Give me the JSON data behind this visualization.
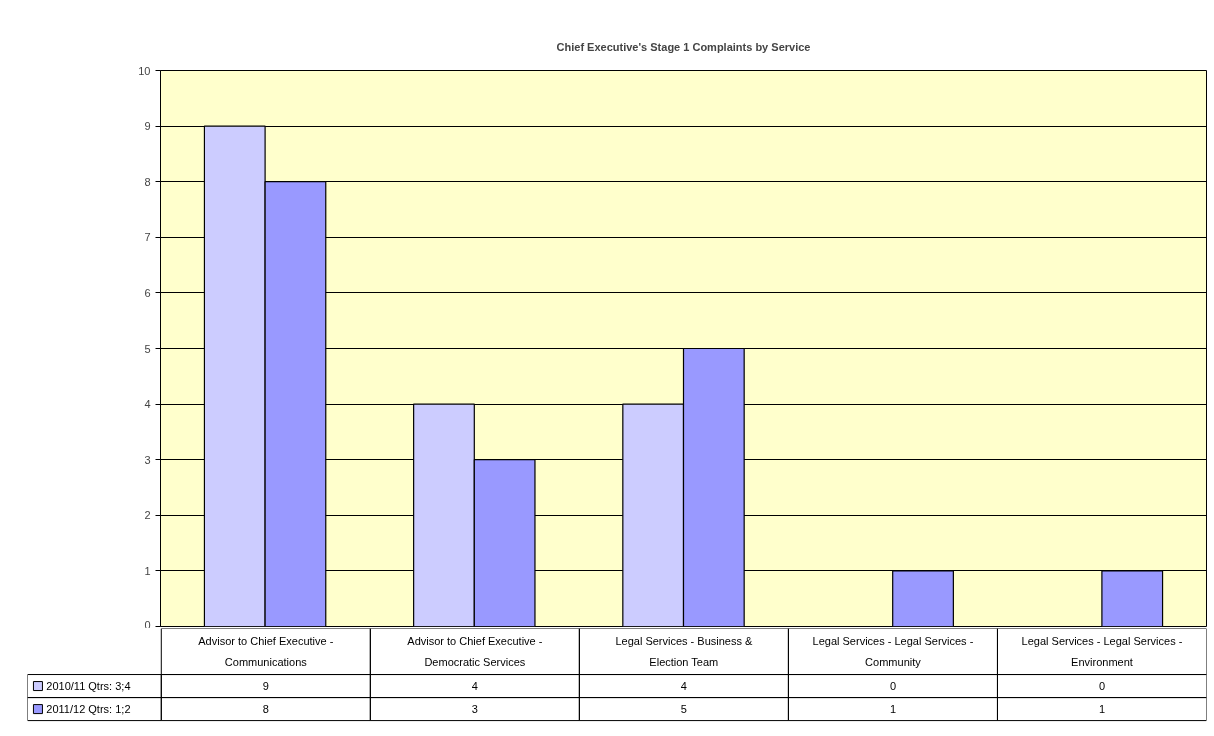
{
  "chart_data": {
    "type": "bar",
    "title": "Chief Executive's Stage 1 Complaints by Service",
    "categories": [
      "Advisor to Chief Executive - Communications",
      "Advisor to Chief Executive - Democratic Services",
      "Legal Services - Business & Election Team",
      "Legal Services - Legal Services - Community",
      "Legal Services - Legal Services - Environment"
    ],
    "series": [
      {
        "name": "2010/11  Qtrs:  3;4",
        "color": "#ccccff",
        "values": [
          9,
          4,
          4,
          0,
          0
        ]
      },
      {
        "name": "2011/12  Qtrs: 1;2",
        "color": "#9999ff",
        "values": [
          8,
          3,
          5,
          1,
          1
        ]
      }
    ],
    "ylim": [
      0,
      10
    ],
    "yticks": [
      0,
      1,
      2,
      3,
      4,
      5,
      6,
      7,
      8,
      9,
      10
    ],
    "grid": "y",
    "legend": "bottom left",
    "data_labels": true
  }
}
